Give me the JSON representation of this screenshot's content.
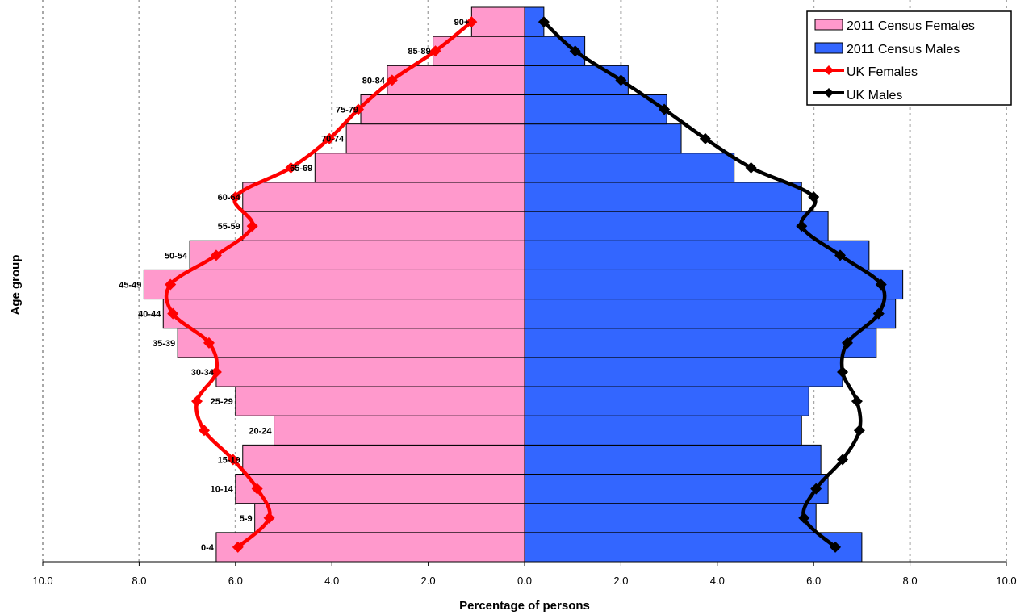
{
  "chart_data": {
    "type": "bar",
    "orientation": "horizontal-population-pyramid",
    "title": "",
    "xlabel": "Percentage of persons",
    "ylabel": "Age group",
    "xlim": [
      -10,
      10
    ],
    "x_ticks": [
      "10.0",
      "8.0",
      "6.0",
      "4.0",
      "2.0",
      "0.0",
      "2.0",
      "4.0",
      "6.0",
      "8.0",
      "10.0"
    ],
    "grid": "vertical dotted",
    "legend_position": "top-right",
    "categories": [
      "0-4",
      "5-9",
      "10-14",
      "15-19",
      "20-24",
      "25-29",
      "30-34",
      "35-39",
      "40-44",
      "45-49",
      "50-54",
      "55-59",
      "60-64",
      "65-69",
      "70-74",
      "75-79",
      "80-84",
      "85-89",
      "90+"
    ],
    "series": [
      {
        "name": "2011 Census Females",
        "kind": "bar",
        "side": "left",
        "color": "#ff99cc",
        "values": [
          6.4,
          5.6,
          6.0,
          5.85,
          5.2,
          6.0,
          6.4,
          7.2,
          7.5,
          7.9,
          6.95,
          5.85,
          5.85,
          4.35,
          3.7,
          3.4,
          2.85,
          1.9,
          1.1
        ]
      },
      {
        "name": "2011 Census Males",
        "kind": "bar",
        "side": "right",
        "color": "#3366ff",
        "values": [
          7.0,
          6.05,
          6.3,
          6.15,
          5.75,
          5.9,
          6.6,
          7.3,
          7.7,
          7.85,
          7.15,
          6.3,
          5.75,
          4.35,
          3.25,
          2.95,
          2.15,
          1.25,
          0.4
        ]
      },
      {
        "name": "UK Females",
        "kind": "line",
        "side": "left",
        "color": "#ff0000",
        "values": [
          5.95,
          5.3,
          5.55,
          6.05,
          6.65,
          6.8,
          6.4,
          6.55,
          7.3,
          7.35,
          6.4,
          5.65,
          6.0,
          4.85,
          4.05,
          3.45,
          2.75,
          1.85,
          1.1
        ]
      },
      {
        "name": "UK Males",
        "kind": "line",
        "side": "right",
        "color": "#000000",
        "values": [
          6.45,
          5.8,
          6.05,
          6.6,
          6.95,
          6.9,
          6.6,
          6.7,
          7.35,
          7.4,
          6.55,
          5.75,
          6.0,
          4.7,
          3.75,
          2.9,
          2.0,
          1.05,
          0.4
        ]
      }
    ]
  }
}
